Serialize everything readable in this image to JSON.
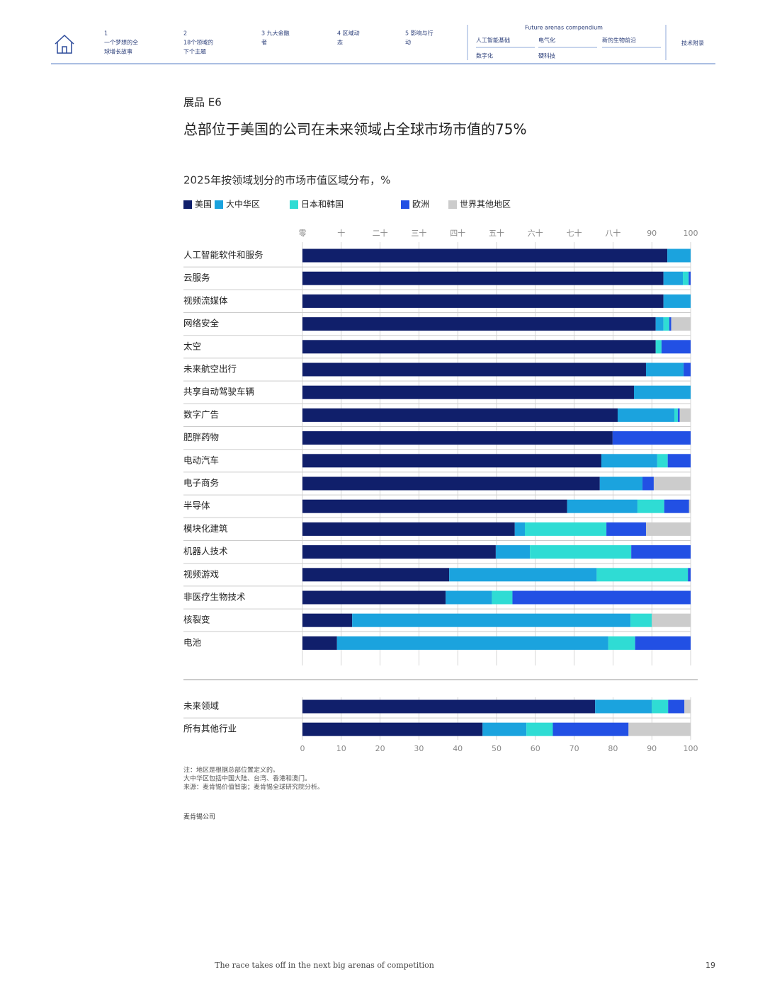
{
  "header": {
    "nav": [
      {
        "lines": [
          "1",
          "一个梦想的全",
          "球增长故事"
        ]
      },
      {
        "lines": [
          "2",
          "18个领域的",
          "下个主题"
        ]
      },
      {
        "lines": [
          "3 九大金融",
          "者"
        ]
      },
      {
        "lines": [
          "4 区域动",
          "态"
        ]
      },
      {
        "lines": [
          "5 影响与行",
          "动"
        ]
      }
    ],
    "compendium": {
      "title": "Future arenas compendium",
      "items": [
        "人工智能基础",
        "电气化",
        "新的生物前沿",
        "数字化",
        "硬科技"
      ]
    },
    "appendix": "技术附录"
  },
  "exhibit": "展品 E6",
  "title": "总部位于美国的公司在未来领域占全球市场市值的75%",
  "subtitle": "2025年按领域划分的市场市值区域分布，%",
  "chart_data": [
    {
      "type": "bar",
      "orientation": "horizontal",
      "stacked": true,
      "legend": "top-left",
      "grid": true,
      "categories": [
        "人工智能软件和服务",
        "云服务",
        "视频流媒体",
        "网络安全",
        "太空",
        "未来航空出行",
        "共享自动驾驶车辆",
        "数字广告",
        "肥胖药物",
        "电动汽车",
        "电子商务",
        "半导体",
        "模块化建筑",
        "机器人技术",
        "视频游戏",
        "非医疗生物技术",
        "核裂变",
        "电池"
      ],
      "series": [
        {
          "name": "美国",
          "color": "#101f6b",
          "values": [
            94,
            93,
            93,
            91,
            91,
            88.5,
            85.4,
            81.2,
            79.9,
            77,
            76.6,
            68.2,
            54.7,
            49.8,
            37.8,
            36.9,
            12.8,
            8.9
          ]
        },
        {
          "name": "大中华区",
          "color": "#1ba3de",
          "values": [
            6,
            5,
            7,
            2,
            0,
            9.7,
            14.6,
            14.6,
            0,
            14.4,
            11,
            18.1,
            2.6,
            8.8,
            38,
            11.9,
            71.7,
            69.9
          ]
        },
        {
          "name": "日本和韩国",
          "color": "#2fdcd4",
          "values": [
            0,
            1.5,
            0,
            1.5,
            1.5,
            0,
            0,
            0.9,
            0,
            2.7,
            0,
            6.9,
            21,
            26.1,
            23.5,
            5.3,
            5.5,
            6.9
          ]
        },
        {
          "name": "欧洲",
          "color": "#2250e4",
          "values": [
            0,
            0.5,
            0,
            0.5,
            7.5,
            1.8,
            0,
            0.5,
            20.1,
            5.9,
            2.9,
            6.4,
            10.2,
            15.3,
            0.7,
            45.9,
            0,
            14.3
          ]
        },
        {
          "name": "世界其他地区",
          "color": "#cccccc",
          "values": [
            0,
            0,
            0,
            5,
            0,
            0,
            0,
            2.8,
            0,
            0,
            9.5,
            0.4,
            11.5,
            0,
            0,
            0,
            10,
            0
          ]
        }
      ],
      "xlim": [
        0,
        100
      ],
      "xticks": [
        {
          "value": 0,
          "label": "零"
        },
        {
          "value": 10,
          "label": "十"
        },
        {
          "value": 20,
          "label": "二十"
        },
        {
          "value": 30,
          "label": "三十"
        },
        {
          "value": 40,
          "label": "四十"
        },
        {
          "value": 50,
          "label": "五十"
        },
        {
          "value": 60,
          "label": "六十"
        },
        {
          "value": 70,
          "label": "七十"
        },
        {
          "value": 80,
          "label": "八十"
        },
        90,
        100
      ]
    },
    {
      "type": "bar",
      "orientation": "horizontal",
      "stacked": true,
      "grid": true,
      "categories": [
        "未来领域",
        "所有其他行业"
      ],
      "series": [
        {
          "color": "#101f6b",
          "values": [
            75.4,
            46.4
          ]
        },
        {
          "color": "#1ba3de",
          "values": [
            14.6,
            11.3
          ]
        },
        {
          "color": "#2fdcd4",
          "values": [
            4.2,
            6.8
          ]
        },
        {
          "color": "#2250e4",
          "values": [
            4.2,
            19.5
          ]
        },
        {
          "color": "#cccccc",
          "values": [
            1.6,
            16
          ]
        }
      ],
      "xlim": [
        0,
        100
      ],
      "xticks": [
        0,
        10,
        20,
        30,
        40,
        50,
        60,
        70,
        80,
        90,
        100
      ]
    }
  ],
  "notes": [
    "注：地区是根据总部位置定义的。",
    "大中华区包括中国大陆、台湾、香港和澳门。",
    "来源：麦肯锡价值智能；麦肯锡全球研究院分析。"
  ],
  "company": "麦肯锡公司",
  "footer": {
    "text": "The race takes off in the next big arenas of competition",
    "page": "19"
  }
}
